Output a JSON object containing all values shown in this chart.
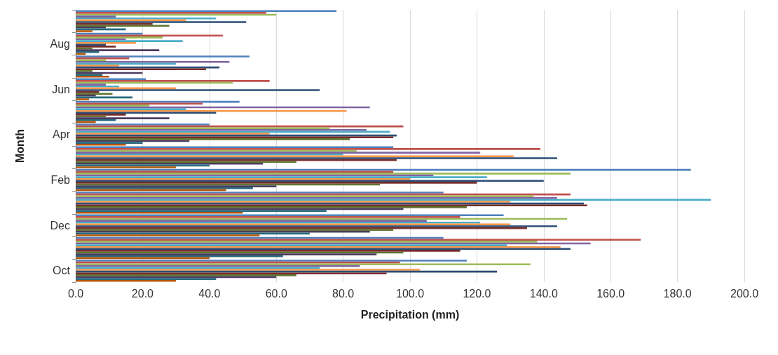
{
  "chart_data": {
    "type": "bar",
    "orientation": "horizontal",
    "xlabel": "Precipitation (mm)",
    "ylabel": "Month",
    "categories": [
      null,
      "Aug",
      null,
      "Jun",
      null,
      "Apr",
      null,
      "Feb",
      null,
      "Dec",
      null,
      "Oct"
    ],
    "xlim": [
      0,
      200
    ],
    "xticks": [
      {
        "value": 0,
        "label": "0.0"
      },
      {
        "value": 20,
        "label": "20.0"
      },
      {
        "value": 40,
        "label": "40.0"
      },
      {
        "value": 60,
        "label": "60.0"
      },
      {
        "value": 80,
        "label": "80.0"
      },
      {
        "value": 100,
        "label": "100.0"
      },
      {
        "value": 120,
        "label": "120.0"
      },
      {
        "value": 140,
        "label": "140.0"
      },
      {
        "value": 160,
        "label": "160.0"
      },
      {
        "value": 180,
        "label": "180.0"
      },
      {
        "value": 200,
        "label": "200.0"
      }
    ],
    "grid": "x",
    "series": [
      {
        "color": "#4f81bd",
        "values": [
          78,
          20,
          52,
          21,
          49,
          40,
          95,
          184,
          110,
          128,
          110,
          117
        ]
      },
      {
        "color": "#c0504d",
        "values": [
          57,
          44,
          16,
          58,
          38,
          98,
          139,
          95,
          148,
          115,
          169,
          97
        ]
      },
      {
        "color": "#9bbb59",
        "values": [
          60,
          26,
          9,
          47,
          22,
          76,
          84,
          148,
          137,
          147,
          138,
          136
        ]
      },
      {
        "color": "#8064a2",
        "values": [
          12,
          15,
          46,
          9,
          88,
          87,
          121,
          107,
          144,
          105,
          154,
          85
        ]
      },
      {
        "color": "#4bacc6",
        "values": [
          42,
          32,
          30,
          13,
          33,
          94,
          80,
          123,
          190,
          121,
          129,
          73
        ]
      },
      {
        "color": "#f79646",
        "values": [
          33,
          18,
          13,
          30,
          81,
          58,
          131,
          100,
          130,
          130,
          145,
          103
        ]
      },
      {
        "color": "#2c4d75",
        "values": [
          51,
          9,
          43,
          73,
          42,
          96,
          144,
          140,
          152,
          144,
          148,
          126
        ]
      },
      {
        "color": "#772c2a",
        "values": [
          23,
          12,
          39,
          7,
          15,
          95,
          96,
          120,
          153,
          135,
          115,
          93
        ]
      },
      {
        "color": "#5f7530",
        "values": [
          28,
          5,
          5,
          11,
          9,
          82,
          66,
          91,
          117,
          95,
          98,
          66
        ]
      },
      {
        "color": "#4d3b62",
        "values": [
          9,
          25,
          20,
          6,
          28,
          34,
          56,
          60,
          98,
          88,
          90,
          60
        ]
      },
      {
        "color": "#276a7c",
        "values": [
          15,
          7,
          8,
          17,
          12,
          20,
          40,
          53,
          75,
          70,
          62,
          42
        ]
      },
      {
        "color": "#b65708",
        "values": [
          5,
          3,
          10,
          4,
          6,
          15,
          30,
          45,
          50,
          55,
          40,
          30
        ]
      }
    ]
  }
}
